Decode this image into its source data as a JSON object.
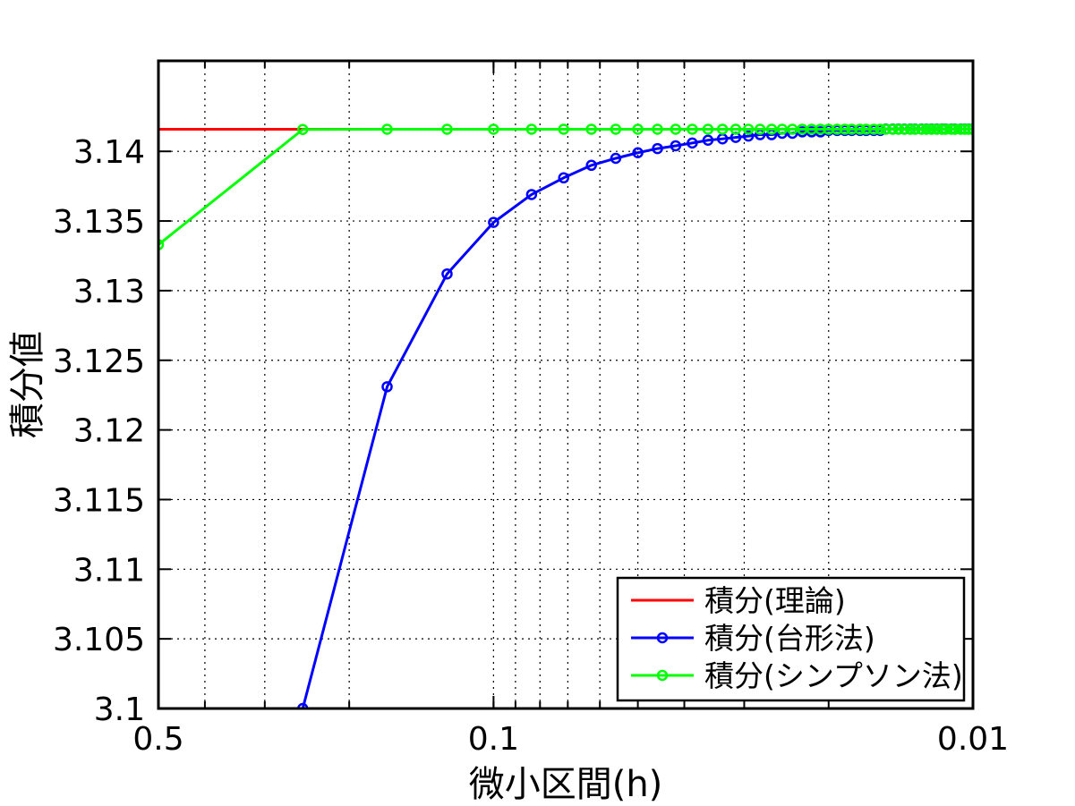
{
  "chart_data": {
    "type": "line",
    "xlabel": "微小区間(h)",
    "ylabel": "積分値",
    "x_scale": "log",
    "x_reversed": true,
    "xlim": [
      0.5,
      0.01
    ],
    "ylim": [
      3.1,
      3.1465
    ],
    "x_ticks": [
      0.5,
      0.1,
      0.01
    ],
    "x_tick_labels": [
      "0.5",
      "0.1",
      "0.01"
    ],
    "y_ticks": [
      3.1,
      3.105,
      3.11,
      3.115,
      3.12,
      3.125,
      3.13,
      3.135,
      3.14
    ],
    "y_tick_labels": [
      "3.1",
      "3.105",
      "3.11",
      "3.115",
      "3.12",
      "3.125",
      "3.13",
      "3.135",
      "3.14"
    ],
    "grid": true,
    "legend_position": "bottom-right",
    "colors": {
      "theory": "#ff0000",
      "trapezoid": "#0000ff",
      "simpson": "#00ff00"
    },
    "series": [
      {
        "name": "積分(理論)",
        "color": "#ff0000",
        "marker": "none",
        "x": [
          0.5,
          0.01
        ],
        "y": [
          3.14159,
          3.14159
        ]
      },
      {
        "name": "積分(台形法)",
        "color": "#0000ff",
        "marker": "circle",
        "x": [
          0.25,
          0.1667,
          0.125,
          0.1,
          0.0833,
          0.0714,
          0.0625,
          0.0556,
          0.05,
          0.0455,
          0.0417,
          0.0385,
          0.0357,
          0.0333,
          0.03125,
          0.0294,
          0.0278,
          0.0263,
          0.025,
          0.0238,
          0.0227,
          0.0217,
          0.0208,
          0.02,
          0.0192,
          0.0185,
          0.0179,
          0.0172,
          0.0167,
          0.0161,
          0.0156,
          0.0152,
          0.0147,
          0.0143,
          0.0139,
          0.0135,
          0.0132,
          0.0128,
          0.0125,
          0.0122,
          0.0119,
          0.0116,
          0.0114,
          0.0111,
          0.0109,
          0.0106,
          0.0104,
          0.0102,
          0.01
        ],
        "y": [
          3.1,
          3.1231,
          3.1312,
          3.1349,
          3.1369,
          3.1381,
          3.139,
          3.1395,
          3.1399,
          3.1402,
          3.1404,
          3.1406,
          3.1408,
          3.1409,
          3.141,
          3.1411,
          3.1412,
          3.1412,
          3.1413,
          3.1413,
          3.1414,
          3.1414,
          3.1414,
          3.1415,
          3.1415,
          3.1415,
          3.1415,
          3.1415,
          3.1415,
          3.1415,
          3.1415,
          3.1416,
          3.1416,
          3.1416,
          3.1416,
          3.1416,
          3.1416,
          3.1416,
          3.1416,
          3.1416,
          3.1416,
          3.1416,
          3.1416,
          3.1416,
          3.1416,
          3.1416,
          3.1416,
          3.1416,
          3.1416
        ]
      },
      {
        "name": "積分(シンプソン法)",
        "color": "#00ff00",
        "marker": "circle",
        "x": [
          0.5,
          0.25,
          0.1667,
          0.125,
          0.1,
          0.0833,
          0.0714,
          0.0625,
          0.0556,
          0.05,
          0.0455,
          0.0417,
          0.0385,
          0.0357,
          0.0333,
          0.03125,
          0.0294,
          0.0278,
          0.0263,
          0.025,
          0.0238,
          0.0227,
          0.0217,
          0.0208,
          0.02,
          0.0192,
          0.0185,
          0.0179,
          0.0172,
          0.0167,
          0.0161,
          0.0156,
          0.0152,
          0.0147,
          0.0143,
          0.0139,
          0.0135,
          0.0132,
          0.0128,
          0.0125,
          0.0122,
          0.0119,
          0.0116,
          0.0114,
          0.0111,
          0.0109,
          0.0106,
          0.0104,
          0.0102,
          0.01
        ],
        "y": [
          3.1333,
          3.14157,
          3.14159,
          3.14159,
          3.14159,
          3.14159,
          3.14159,
          3.14159,
          3.14159,
          3.14159,
          3.14159,
          3.14159,
          3.14159,
          3.14159,
          3.14159,
          3.14159,
          3.14159,
          3.14159,
          3.14159,
          3.14159,
          3.14159,
          3.14159,
          3.14159,
          3.14159,
          3.14159,
          3.14159,
          3.14159,
          3.14159,
          3.14159,
          3.14159,
          3.14159,
          3.14159,
          3.14159,
          3.14159,
          3.14159,
          3.14159,
          3.14159,
          3.14159,
          3.14159,
          3.14159,
          3.14159,
          3.14159,
          3.14159,
          3.14159,
          3.14159,
          3.14159,
          3.14159,
          3.14159,
          3.14159,
          3.14159
        ]
      }
    ]
  }
}
